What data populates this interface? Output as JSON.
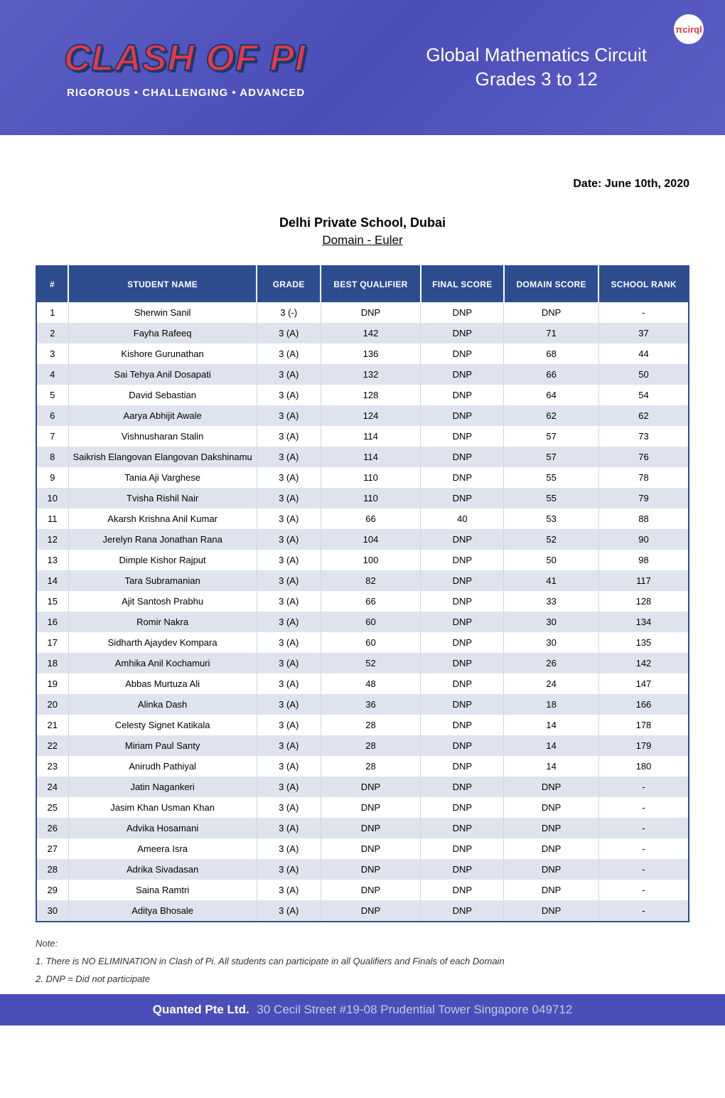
{
  "banner": {
    "logo_title": "CLASH OF PI",
    "logo_tagline": "RIGOROUS • CHALLENGING • ADVANCED",
    "subtitle_line1": "Global Mathematics Circuit",
    "subtitle_line2": "Grades 3 to 12",
    "circle_logo": "πcirql"
  },
  "header": {
    "date_label": "Date: June 10th, 2020",
    "school_name": "Delhi Private School, Dubai",
    "domain_name": "Domain - Euler"
  },
  "table": {
    "columns": [
      "#",
      "STUDENT NAME",
      "GRADE",
      "BEST QUALIFIER",
      "FINAL SCORE",
      "DOMAIN SCORE",
      "SCHOOL RANK"
    ],
    "rows": [
      [
        "1",
        "Sherwin Sanil",
        "3 (-)",
        "DNP",
        "DNP",
        "DNP",
        "-"
      ],
      [
        "2",
        "Fayha Rafeeq",
        "3 (A)",
        "142",
        "DNP",
        "71",
        "37"
      ],
      [
        "3",
        "Kishore Gurunathan",
        "3 (A)",
        "136",
        "DNP",
        "68",
        "44"
      ],
      [
        "4",
        "Sai Tehya Anil Dosapati",
        "3 (A)",
        "132",
        "DNP",
        "66",
        "50"
      ],
      [
        "5",
        "David Sebastian",
        "3 (A)",
        "128",
        "DNP",
        "64",
        "54"
      ],
      [
        "6",
        "Aarya Abhijit Awale",
        "3 (A)",
        "124",
        "DNP",
        "62",
        "62"
      ],
      [
        "7",
        "Vishnusharan Stalin",
        "3 (A)",
        "114",
        "DNP",
        "57",
        "73"
      ],
      [
        "8",
        "Saikrish Elangovan Elangovan Dakshinamu",
        "3 (A)",
        "114",
        "DNP",
        "57",
        "76"
      ],
      [
        "9",
        "Tania Aji Varghese",
        "3 (A)",
        "110",
        "DNP",
        "55",
        "78"
      ],
      [
        "10",
        "Tvisha Rishil Nair",
        "3 (A)",
        "110",
        "DNP",
        "55",
        "79"
      ],
      [
        "11",
        "Akarsh Krishna Anil Kumar",
        "3 (A)",
        "66",
        "40",
        "53",
        "88"
      ],
      [
        "12",
        "Jerelyn Rana Jonathan Rana",
        "3 (A)",
        "104",
        "DNP",
        "52",
        "90"
      ],
      [
        "13",
        "Dimple Kishor Rajput",
        "3 (A)",
        "100",
        "DNP",
        "50",
        "98"
      ],
      [
        "14",
        "Tara Subramanian",
        "3 (A)",
        "82",
        "DNP",
        "41",
        "117"
      ],
      [
        "15",
        "Ajit Santosh Prabhu",
        "3 (A)",
        "66",
        "DNP",
        "33",
        "128"
      ],
      [
        "16",
        "Romir Nakra",
        "3 (A)",
        "60",
        "DNP",
        "30",
        "134"
      ],
      [
        "17",
        "Sidharth Ajaydev Kompara",
        "3 (A)",
        "60",
        "DNP",
        "30",
        "135"
      ],
      [
        "18",
        "Amhika Anil Kochamuri",
        "3 (A)",
        "52",
        "DNP",
        "26",
        "142"
      ],
      [
        "19",
        "Abbas Murtuza Ali",
        "3 (A)",
        "48",
        "DNP",
        "24",
        "147"
      ],
      [
        "20",
        "Alinka Dash",
        "3 (A)",
        "36",
        "DNP",
        "18",
        "166"
      ],
      [
        "21",
        "Celesty Signet Katikala",
        "3 (A)",
        "28",
        "DNP",
        "14",
        "178"
      ],
      [
        "22",
        "Miriam Paul Santy",
        "3 (A)",
        "28",
        "DNP",
        "14",
        "179"
      ],
      [
        "23",
        "Anirudh Pathiyal",
        "3 (A)",
        "28",
        "DNP",
        "14",
        "180"
      ],
      [
        "24",
        "Jatin Nagankeri",
        "3 (A)",
        "DNP",
        "DNP",
        "DNP",
        "-"
      ],
      [
        "25",
        "Jasim Khan Usman Khan",
        "3 (A)",
        "DNP",
        "DNP",
        "DNP",
        "-"
      ],
      [
        "26",
        "Advika Hosamani",
        "3 (A)",
        "DNP",
        "DNP",
        "DNP",
        "-"
      ],
      [
        "27",
        "Ameera Isra",
        "3 (A)",
        "DNP",
        "DNP",
        "DNP",
        "-"
      ],
      [
        "28",
        "Adrika Sivadasan",
        "3 (A)",
        "DNP",
        "DNP",
        "DNP",
        "-"
      ],
      [
        "29",
        "Saina Ramtri",
        "3 (A)",
        "DNP",
        "DNP",
        "DNP",
        "-"
      ],
      [
        "30",
        "Aditya Bhosale",
        "3 (A)",
        "DNP",
        "DNP",
        "DNP",
        "-"
      ]
    ],
    "header_bg": "#2e4d8f",
    "header_fg": "#ffffff",
    "row_even_bg": "#dfe3ed",
    "row_odd_bg": "#ffffff",
    "border_color": "#2e4d8f",
    "cell_border_color": "#cfd6e6"
  },
  "notes": {
    "label": "Note:",
    "items": [
      "1. There is NO ELIMINATION in Clash of Pi. All students can participate in all Qualifiers and Finals of each Domain",
      "2. DNP = Did not participate"
    ]
  },
  "footer": {
    "company": "Quanted Pte Ltd.",
    "address": "30 Cecil Street #19-08 Prudential Tower Singapore 049712"
  }
}
